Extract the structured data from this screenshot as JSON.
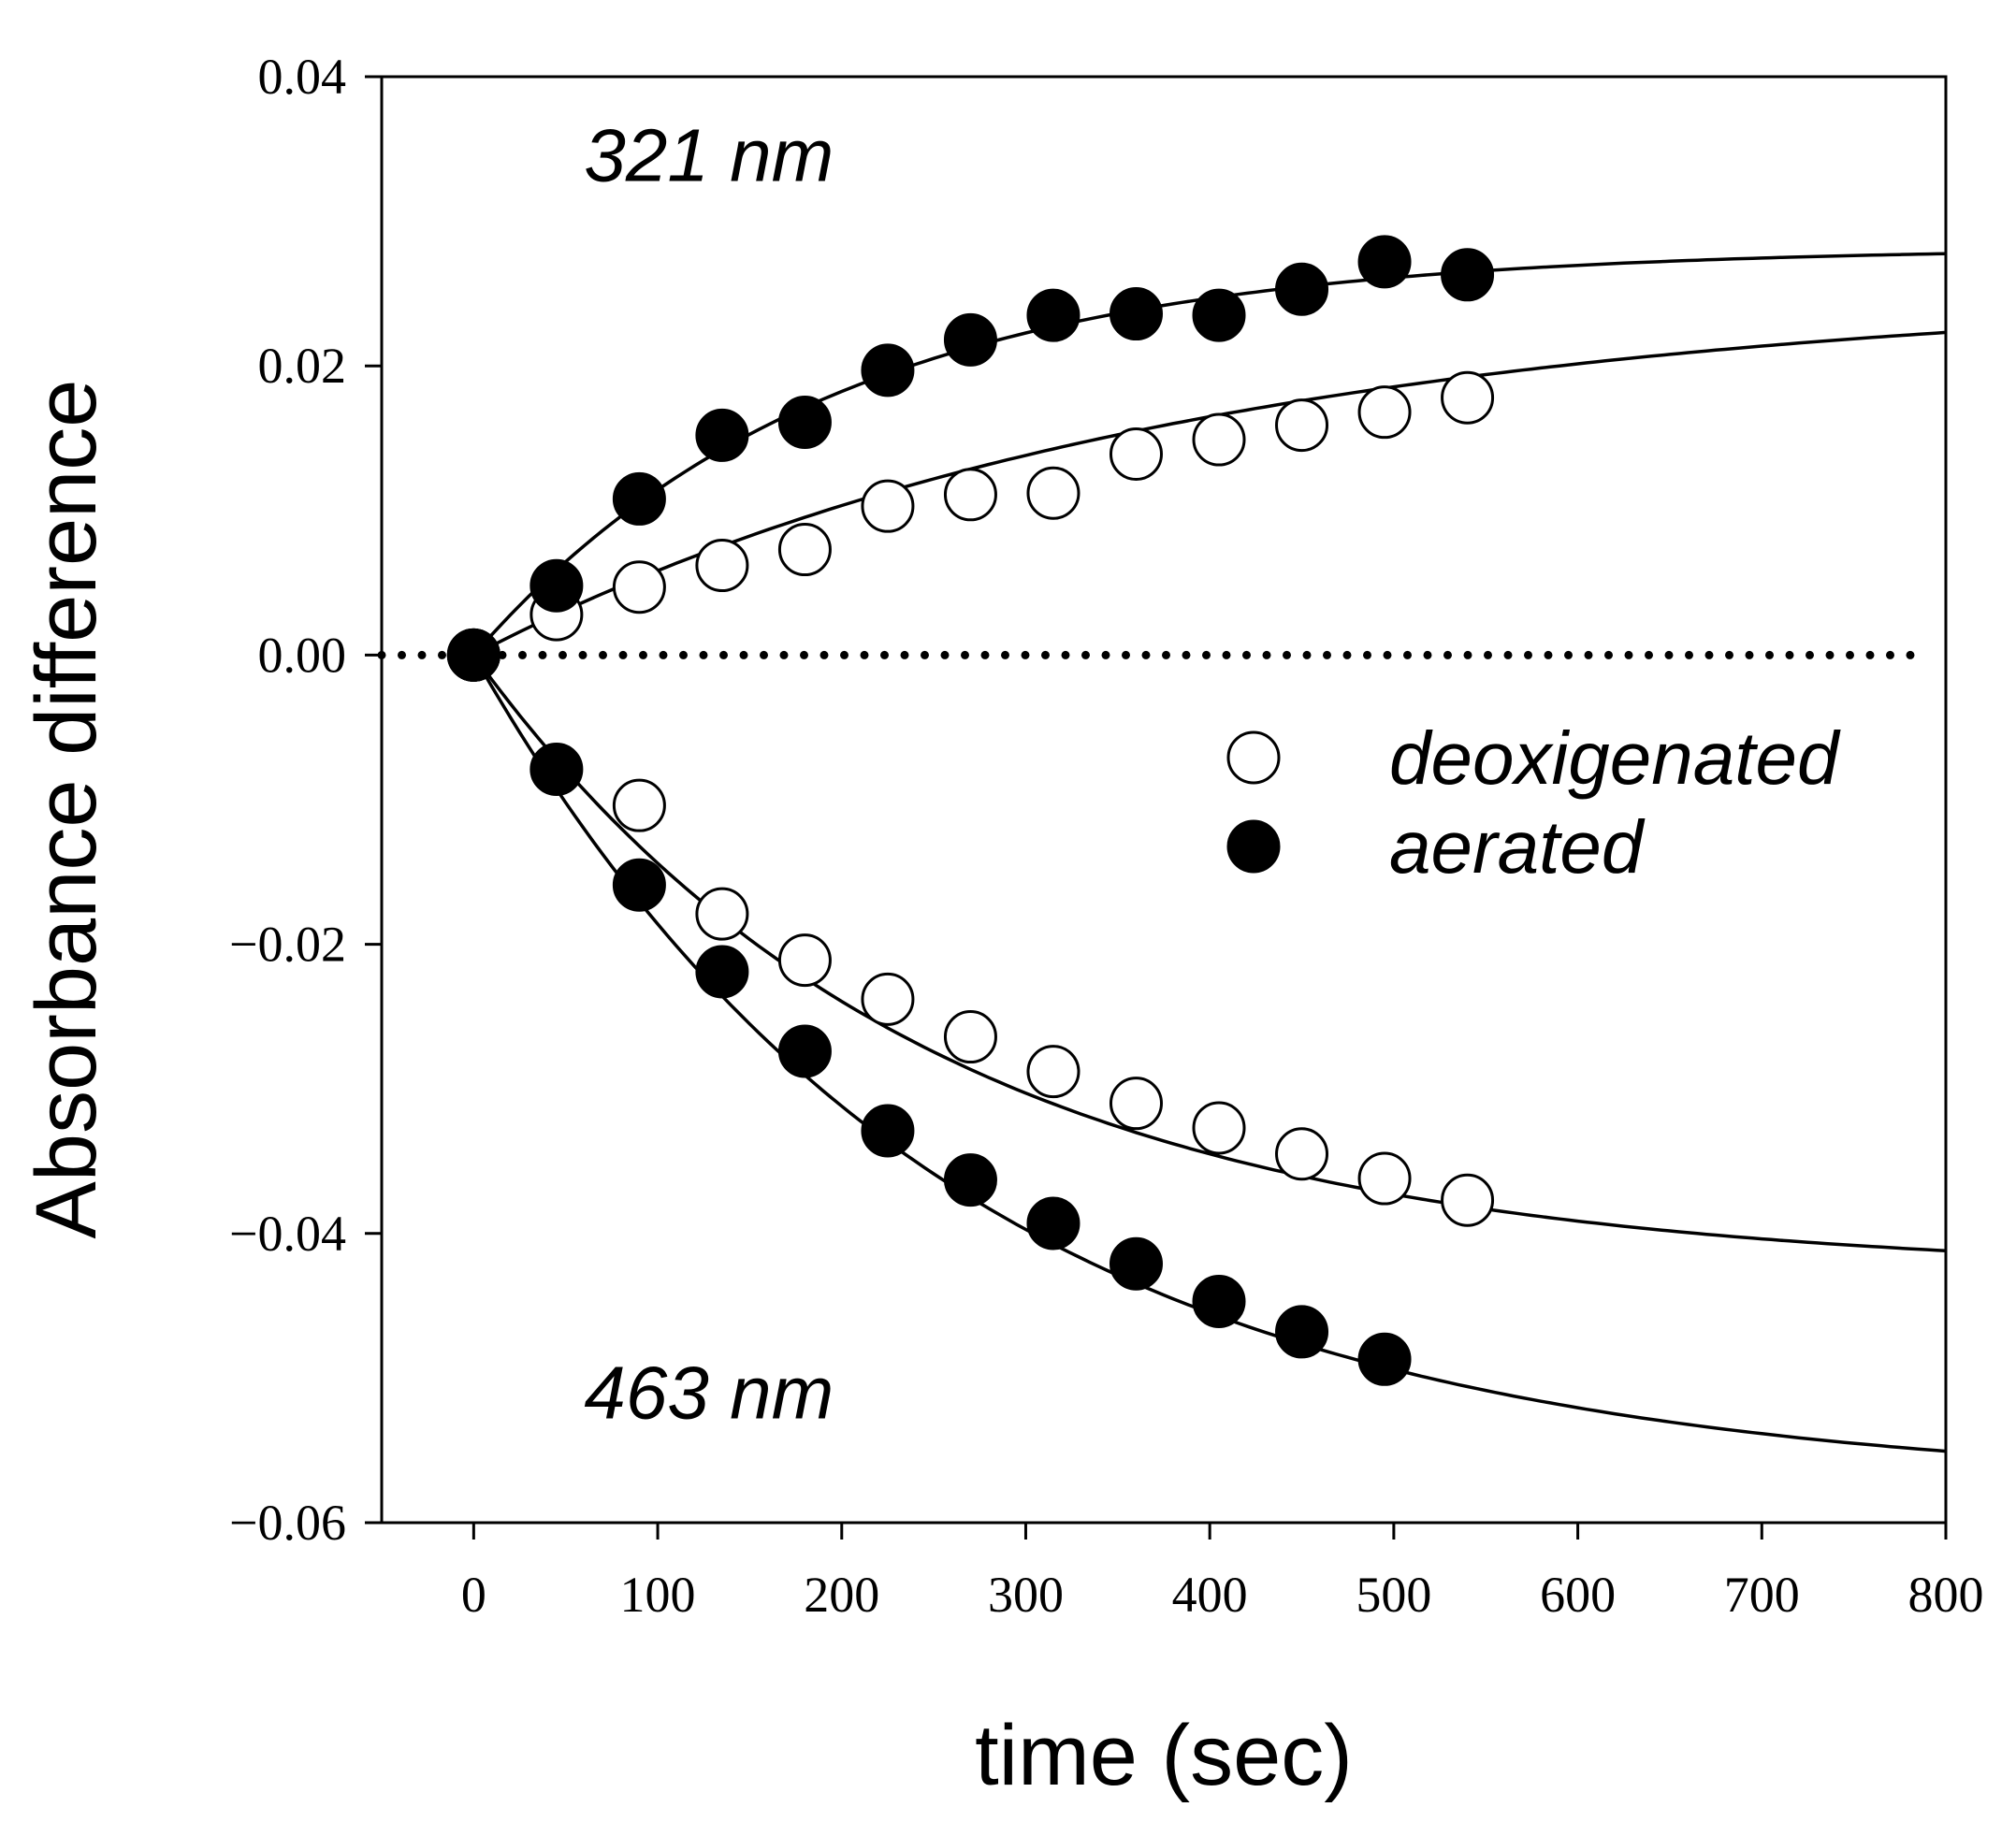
{
  "chart_data": {
    "type": "scatter",
    "title": "",
    "xlabel": "time (sec)",
    "ylabel": "Absorbance difference",
    "xlim": [
      -50,
      800
    ],
    "ylim": [
      -0.06,
      0.04
    ],
    "xticks": [
      0,
      100,
      200,
      300,
      400,
      500,
      600,
      700,
      800
    ],
    "xtick_labels": [
      "0",
      "100",
      "200",
      "300",
      "400",
      "500",
      "600",
      "700",
      "800"
    ],
    "yticks": [
      0.04,
      0.02,
      0.0,
      -0.02,
      -0.04,
      -0.06
    ],
    "ytick_labels": [
      "0.04",
      "0.02",
      "0.00",
      "−0.02",
      "−0.04",
      "−0.06"
    ],
    "grid": false,
    "legend_position": "center-right",
    "baseline": {
      "y": 0,
      "style": "dotted",
      "x_range": [
        -50,
        790
      ]
    },
    "annotations": [
      {
        "text": "321 nm",
        "x": 60,
        "y": 0.0328
      },
      {
        "text": "463 nm",
        "x": 60,
        "y": -0.0528
      }
    ],
    "series": [
      {
        "name": "aerated",
        "legend_label": "aerated",
        "wavelength": "321 nm",
        "marker": "filled",
        "x": [
          0,
          45,
          90,
          135,
          180,
          225,
          270,
          315,
          360,
          405,
          450,
          495,
          540
        ],
        "y": [
          0.0,
          0.0048,
          0.0108,
          0.0152,
          0.0161,
          0.0197,
          0.0218,
          0.0235,
          0.0236,
          0.0235,
          0.0253,
          0.0272,
          0.0263
        ],
        "fit_curve": {
          "A": 0.0282,
          "k": 0.0052
        }
      },
      {
        "name": "deoxigenated",
        "legend_label": "deoxigenated",
        "wavelength": "321 nm",
        "marker": "open",
        "x": [
          0,
          45,
          90,
          135,
          180,
          225,
          270,
          315,
          360,
          405,
          450,
          495,
          540
        ],
        "y": [
          0.0,
          0.0028,
          0.0047,
          0.0062,
          0.0073,
          0.0103,
          0.0111,
          0.0112,
          0.0139,
          0.0149,
          0.0159,
          0.0168,
          0.0178
        ],
        "fit_curve": {
          "A": 0.0255,
          "k": 0.0026
        }
      },
      {
        "name": "aerated",
        "legend_label": "aerated",
        "wavelength": "463 nm",
        "marker": "filled",
        "x": [
          0,
          45,
          90,
          135,
          180,
          225,
          270,
          315,
          360,
          405,
          450,
          495
        ],
        "y": [
          0.0,
          -0.0079,
          -0.0159,
          -0.0219,
          -0.0274,
          -0.0329,
          -0.0363,
          -0.0393,
          -0.0421,
          -0.0447,
          -0.0468,
          -0.0487
        ],
        "fit_curve": {
          "A": -0.0576,
          "k": 0.0039
        }
      },
      {
        "name": "deoxigenated",
        "legend_label": "deoxigenated",
        "wavelength": "463 nm",
        "marker": "open",
        "x": [
          0,
          90,
          135,
          180,
          225,
          270,
          315,
          360,
          405,
          450,
          495,
          540
        ],
        "y": [
          0.0,
          -0.0104,
          -0.0179,
          -0.0211,
          -0.0238,
          -0.0264,
          -0.0288,
          -0.031,
          -0.0327,
          -0.0345,
          -0.0362,
          -0.0377
        ],
        "fit_curve": {
          "A": -0.0428,
          "k": 0.0041
        }
      }
    ],
    "legend": [
      {
        "label": "deoxigenated",
        "marker": "open"
      },
      {
        "label": "aerated",
        "marker": "filled"
      }
    ]
  }
}
